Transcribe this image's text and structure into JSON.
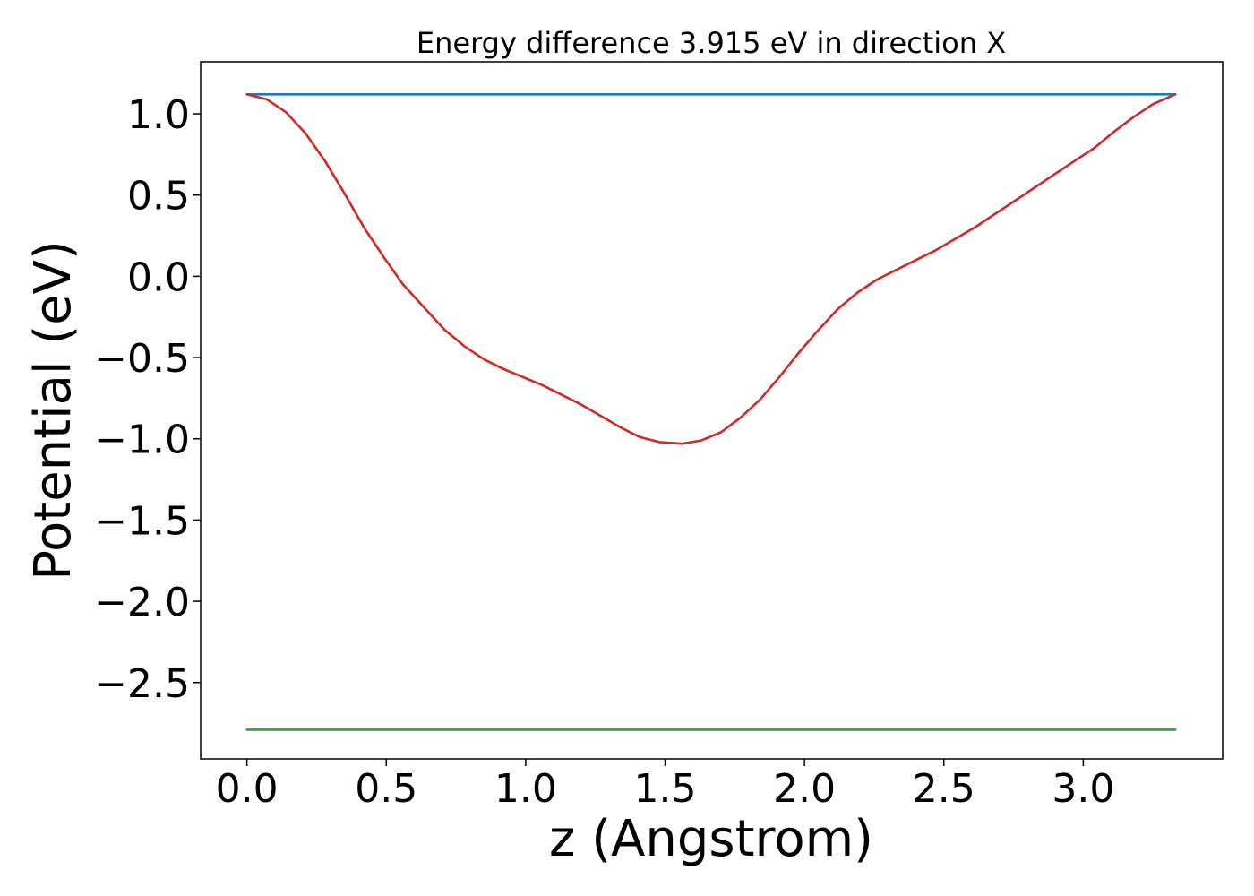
{
  "chart_data": {
    "type": "line",
    "title": "Energy difference 3.915 eV in direction X",
    "xlabel": "z (Angstrom)",
    "ylabel": "Potential (eV)",
    "xlim": [
      -0.166,
      3.5
    ],
    "ylim": [
      -2.97,
      1.32
    ],
    "xticks": [
      0.0,
      0.5,
      1.0,
      1.5,
      2.0,
      2.5,
      3.0
    ],
    "xtick_labels": [
      "0.0",
      "0.5",
      "1.0",
      "1.5",
      "2.0",
      "2.5",
      "3.0"
    ],
    "yticks": [
      1.0,
      0.5,
      0.0,
      -0.5,
      -1.0,
      -1.5,
      -2.0,
      -2.5
    ],
    "ytick_labels": [
      "1.0",
      "0.5",
      "0.0",
      "−0.5",
      "−1.0",
      "−1.5",
      "−2.0",
      "−2.5"
    ],
    "grid": false,
    "series": [
      {
        "color": "#1f77b4",
        "x": [
          0.0,
          3.33
        ],
        "y": [
          1.12,
          1.12
        ]
      },
      {
        "color": "#2ca02c",
        "x": [
          0.0,
          3.33
        ],
        "y": [
          -2.79,
          -2.79
        ]
      },
      {
        "color": "#d62728",
        "x": [
          0.0,
          0.07,
          0.14,
          0.21,
          0.28,
          0.35,
          0.42,
          0.49,
          0.56,
          0.64,
          0.71,
          0.78,
          0.85,
          0.92,
          0.99,
          1.06,
          1.13,
          1.2,
          1.27,
          1.34,
          1.41,
          1.48,
          1.56,
          1.63,
          1.7,
          1.77,
          1.84,
          1.91,
          1.98,
          2.05,
          2.12,
          2.19,
          2.26,
          2.33,
          2.4,
          2.47,
          2.54,
          2.61,
          2.68,
          2.75,
          2.82,
          2.89,
          2.96,
          3.04,
          3.11,
          3.18,
          3.25,
          3.33
        ],
        "y": [
          1.12,
          1.09,
          1.01,
          0.88,
          0.71,
          0.51,
          0.3,
          0.12,
          -0.05,
          -0.2,
          -0.33,
          -0.43,
          -0.51,
          -0.57,
          -0.62,
          -0.67,
          -0.73,
          -0.79,
          -0.86,
          -0.93,
          -0.99,
          -1.02,
          -1.03,
          -1.01,
          -0.96,
          -0.87,
          -0.76,
          -0.62,
          -0.47,
          -0.33,
          -0.2,
          -0.1,
          -0.02,
          0.04,
          0.1,
          0.16,
          0.23,
          0.3,
          0.38,
          0.46,
          0.54,
          0.62,
          0.7,
          0.79,
          0.89,
          0.98,
          1.06,
          1.12
        ]
      }
    ]
  }
}
